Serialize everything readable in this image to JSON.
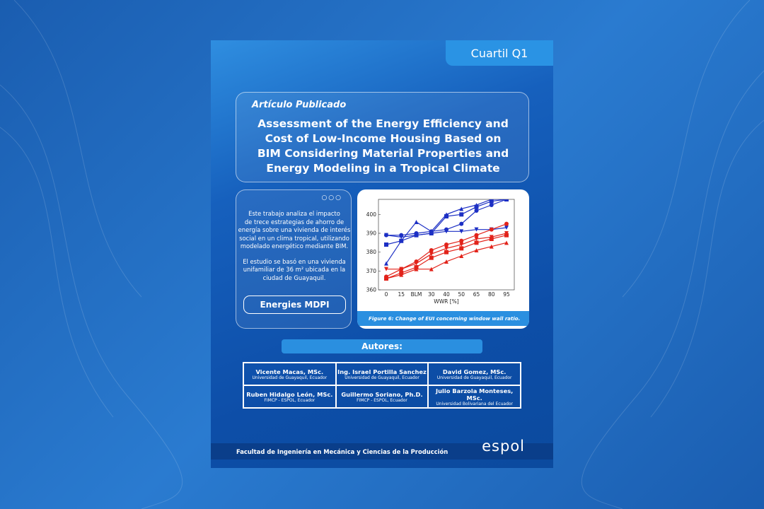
{
  "tab": "Cuartil Q1",
  "article": {
    "label": "Artículo Publicado",
    "title": [
      "Assessment of the Energy Efficiency and",
      "Cost of Low-Income Housing Based on",
      "BIM Considering Material Properties and",
      "Energy Modeling in a Tropical Climate"
    ]
  },
  "summary": {
    "paragraphs": [
      [
        "Este trabajo analiza el impacto",
        "de trece estrategias de ahorro de",
        "energía sobre una vivienda de interés",
        "social en un clima tropical, utilizando",
        "modelado energético mediante BIM."
      ],
      [
        "El estudio se basó en una vivienda",
        "unifamiliar de 36 m² ubicada en la",
        "ciudad de Guayaquil."
      ]
    ],
    "button": "Energies MDPI"
  },
  "chart_data": {
    "type": "line",
    "caption": "Figure 6: Change of EUI concerning window wall ratio.",
    "x_label": "WWR [%]",
    "categories": [
      "0",
      "15",
      "BLM",
      "30",
      "40",
      "50",
      "65",
      "80",
      "95"
    ],
    "ylim": [
      360,
      408
    ],
    "yticks": [
      360,
      370,
      380,
      390,
      400
    ],
    "series": [
      {
        "color": "#1c2fc4",
        "marker": "triangle",
        "values": [
          374,
          386,
          396,
          391,
          400,
          403,
          405,
          408,
          408
        ]
      },
      {
        "color": "#1c2fc4",
        "marker": "circle",
        "values": [
          389,
          389,
          390,
          391,
          392,
          395,
          402,
          405,
          408
        ]
      },
      {
        "color": "#1c2fc4",
        "marker": "square",
        "values": [
          384,
          386,
          389,
          390,
          399,
          400,
          404,
          407,
          408
        ]
      },
      {
        "color": "#1c2fc4",
        "marker": "triangle-down",
        "values": [
          389,
          388,
          389,
          390,
          391,
          391,
          392,
          392,
          393
        ]
      },
      {
        "color": "#e2231a",
        "marker": "circle",
        "values": [
          367,
          371,
          375,
          381,
          384,
          386,
          389,
          392,
          395
        ]
      },
      {
        "color": "#e2231a",
        "marker": "triangle-down",
        "values": [
          371,
          371,
          374,
          379,
          382,
          384,
          387,
          388,
          390
        ]
      },
      {
        "color": "#e2231a",
        "marker": "square",
        "values": [
          366,
          369,
          372,
          377,
          380,
          382,
          385,
          387,
          389
        ]
      },
      {
        "color": "#e2231a",
        "marker": "triangle",
        "values": [
          366,
          368,
          371,
          371,
          375,
          378,
          381,
          383,
          385
        ]
      }
    ]
  },
  "authors": {
    "heading": "Autores:",
    "rows": [
      [
        {
          "name": "Vicente Macas, MSc.",
          "affiliation": "Universidad de Guayaquil, Ecuador"
        },
        {
          "name": "Ing. Israel Portilla Sanchez",
          "affiliation": "Universidad de Guayaquil, Ecuador"
        },
        {
          "name": "David Gomez, MSc.",
          "affiliation": "Universidad de Guayaquil, Ecuador"
        }
      ],
      [
        {
          "name": "Ruben Hidalgo León, MSc.",
          "affiliation": "FIMCP - ESPOL, Ecuador"
        },
        {
          "name": "Guillermo Soriano, Ph.D.",
          "affiliation": "FIMCP - ESPOL, Ecuador"
        },
        {
          "name": "Julio Barzola Monteses, MSc.",
          "affiliation": "Universidad Bolivariana del Ecuador"
        }
      ]
    ]
  },
  "footer": {
    "faculty": "Facultad de Ingeniería en Mecánica y Ciencias de la Producción",
    "logo": "espol"
  }
}
